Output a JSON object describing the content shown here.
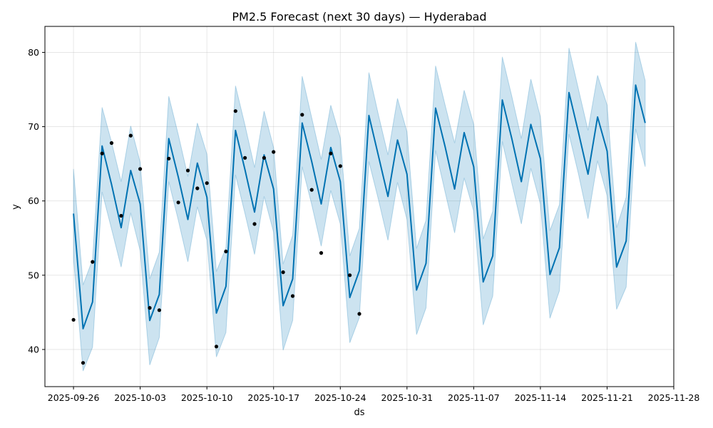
{
  "chart_data": {
    "type": "line",
    "title": "PM2.5 Forecast (next 30 days) — Hyderabad",
    "xlabel": "ds",
    "ylabel": "y",
    "grid": true,
    "x_range": [
      "2025-09-23",
      "2025-11-28"
    ],
    "ylim": [
      35,
      83.5
    ],
    "x_ticks": [
      "2025-09-26",
      "2025-10-03",
      "2025-10-10",
      "2025-10-17",
      "2025-10-24",
      "2025-10-31",
      "2025-11-07",
      "2025-11-14",
      "2025-11-21",
      "2025-11-28"
    ],
    "y_ticks": [
      40,
      50,
      60,
      70,
      80
    ],
    "colors": {
      "forecast": "#0072b2",
      "interval": "#0072b2",
      "observed": "#000000"
    },
    "series": [
      {
        "type": "scatter",
        "points": [
          {
            "x": "2025-09-26",
            "y": 44.0
          },
          {
            "x": "2025-09-27",
            "y": 38.2
          },
          {
            "x": "2025-09-28",
            "y": 51.8
          },
          {
            "x": "2025-09-29",
            "y": 66.4
          },
          {
            "x": "2025-09-30",
            "y": 67.8
          },
          {
            "x": "2025-10-01",
            "y": 58.0
          },
          {
            "x": "2025-10-02",
            "y": 68.8
          },
          {
            "x": "2025-10-03",
            "y": 64.3
          },
          {
            "x": "2025-10-04",
            "y": 45.6
          },
          {
            "x": "2025-10-05",
            "y": 45.3
          },
          {
            "x": "2025-10-06",
            "y": 65.7
          },
          {
            "x": "2025-10-07",
            "y": 59.8
          },
          {
            "x": "2025-10-08",
            "y": 64.1
          },
          {
            "x": "2025-10-09",
            "y": 61.7
          },
          {
            "x": "2025-10-10",
            "y": 62.4
          },
          {
            "x": "2025-10-11",
            "y": 40.4
          },
          {
            "x": "2025-10-12",
            "y": 53.2
          },
          {
            "x": "2025-10-13",
            "y": 72.1
          },
          {
            "x": "2025-10-14",
            "y": 65.8
          },
          {
            "x": "2025-10-15",
            "y": 56.9
          },
          {
            "x": "2025-10-16",
            "y": 65.8
          },
          {
            "x": "2025-10-17",
            "y": 66.6
          },
          {
            "x": "2025-10-18",
            "y": 50.4
          },
          {
            "x": "2025-10-19",
            "y": 47.2
          },
          {
            "x": "2025-10-20",
            "y": 71.6
          },
          {
            "x": "2025-10-21",
            "y": 61.5
          },
          {
            "x": "2025-10-22",
            "y": 53.0
          },
          {
            "x": "2025-10-23",
            "y": 66.4
          },
          {
            "x": "2025-10-24",
            "y": 64.7
          },
          {
            "x": "2025-10-25",
            "y": 50.0
          },
          {
            "x": "2025-10-26",
            "y": 44.8
          }
        ]
      },
      {
        "type": "line",
        "points": [
          {
            "x": "2025-09-26",
            "y": 58.3
          },
          {
            "x": "2025-09-27",
            "y": 42.8
          },
          {
            "x": "2025-09-28",
            "y": 46.4
          },
          {
            "x": "2025-09-29",
            "y": 67.4
          },
          {
            "x": "2025-09-30",
            "y": 62.2
          },
          {
            "x": "2025-10-01",
            "y": 56.4
          },
          {
            "x": "2025-10-02",
            "y": 64.1
          },
          {
            "x": "2025-10-03",
            "y": 59.6
          },
          {
            "x": "2025-10-04",
            "y": 43.9
          },
          {
            "x": "2025-10-05",
            "y": 47.4
          },
          {
            "x": "2025-10-06",
            "y": 68.4
          },
          {
            "x": "2025-10-07",
            "y": 63.2
          },
          {
            "x": "2025-10-08",
            "y": 57.5
          },
          {
            "x": "2025-10-09",
            "y": 65.1
          },
          {
            "x": "2025-10-10",
            "y": 60.5
          },
          {
            "x": "2025-10-11",
            "y": 44.9
          },
          {
            "x": "2025-10-12",
            "y": 48.5
          },
          {
            "x": "2025-10-13",
            "y": 69.5
          },
          {
            "x": "2025-10-14",
            "y": 64.2
          },
          {
            "x": "2025-10-15",
            "y": 58.5
          },
          {
            "x": "2025-10-16",
            "y": 66.2
          },
          {
            "x": "2025-10-17",
            "y": 61.6
          },
          {
            "x": "2025-10-18",
            "y": 45.9
          },
          {
            "x": "2025-10-19",
            "y": 49.5
          },
          {
            "x": "2025-10-20",
            "y": 70.5
          },
          {
            "x": "2025-10-21",
            "y": 65.3
          },
          {
            "x": "2025-10-22",
            "y": 59.6
          },
          {
            "x": "2025-10-23",
            "y": 67.2
          },
          {
            "x": "2025-10-24",
            "y": 62.6
          },
          {
            "x": "2025-10-25",
            "y": 47.0
          },
          {
            "x": "2025-10-26",
            "y": 50.6
          },
          {
            "x": "2025-10-27",
            "y": 71.5
          },
          {
            "x": "2025-10-28",
            "y": 66.1
          },
          {
            "x": "2025-10-29",
            "y": 60.6
          },
          {
            "x": "2025-10-30",
            "y": 68.2
          },
          {
            "x": "2025-10-31",
            "y": 63.6
          },
          {
            "x": "2025-11-01",
            "y": 48.0
          },
          {
            "x": "2025-11-02",
            "y": 51.6
          },
          {
            "x": "2025-11-03",
            "y": 72.5
          },
          {
            "x": "2025-11-04",
            "y": 67.3
          },
          {
            "x": "2025-11-05",
            "y": 61.6
          },
          {
            "x": "2025-11-06",
            "y": 69.2
          },
          {
            "x": "2025-11-07",
            "y": 64.6
          },
          {
            "x": "2025-11-08",
            "y": 49.1
          },
          {
            "x": "2025-11-09",
            "y": 52.6
          },
          {
            "x": "2025-11-10",
            "y": 73.6
          },
          {
            "x": "2025-11-11",
            "y": 68.4
          },
          {
            "x": "2025-11-12",
            "y": 62.6
          },
          {
            "x": "2025-11-13",
            "y": 70.3
          },
          {
            "x": "2025-11-14",
            "y": 65.7
          },
          {
            "x": "2025-11-15",
            "y": 50.1
          },
          {
            "x": "2025-11-16",
            "y": 53.7
          },
          {
            "x": "2025-11-17",
            "y": 74.6
          },
          {
            "x": "2025-11-18",
            "y": 69.2
          },
          {
            "x": "2025-11-19",
            "y": 63.6
          },
          {
            "x": "2025-11-20",
            "y": 71.3
          },
          {
            "x": "2025-11-21",
            "y": 66.7
          },
          {
            "x": "2025-11-22",
            "y": 51.1
          },
          {
            "x": "2025-11-23",
            "y": 54.6
          },
          {
            "x": "2025-11-24",
            "y": 75.6
          },
          {
            "x": "2025-11-25",
            "y": 70.5
          }
        ]
      },
      {
        "type": "band",
        "lower": [
          52.2,
          37.1,
          40.3,
          61.2,
          56.2,
          51.1,
          58.4,
          53.3,
          37.9,
          41.6,
          62.6,
          57.4,
          51.8,
          59.2,
          54.7,
          39.0,
          42.3,
          63.5,
          58.3,
          52.8,
          60.6,
          55.8,
          39.9,
          43.9,
          64.6,
          59.5,
          53.9,
          61.4,
          56.9,
          40.9,
          44.3,
          65.3,
          60.2,
          54.7,
          62.5,
          57.5,
          42.0,
          45.6,
          66.8,
          61.2,
          55.7,
          63.1,
          58.6,
          43.3,
          47.2,
          68.0,
          62.4,
          56.9,
          64.4,
          59.6,
          44.2,
          47.9,
          69.0,
          63.6,
          57.6,
          65.4,
          60.7,
          45.4,
          48.4,
          69.7,
          64.6
        ],
        "upper": [
          64.3,
          48.7,
          52.1,
          72.6,
          67.9,
          62.6,
          70.1,
          65.2,
          49.5,
          53.1,
          74.1,
          68.9,
          63.3,
          70.5,
          66.3,
          50.5,
          53.7,
          75.5,
          70.2,
          64.5,
          72.1,
          67.2,
          51.5,
          55.4,
          76.8,
          71.2,
          65.6,
          72.9,
          68.5,
          52.6,
          56.3,
          77.3,
          71.6,
          66.2,
          73.8,
          69.3,
          53.6,
          57.4,
          78.2,
          72.9,
          67.8,
          74.9,
          70.3,
          54.9,
          58.6,
          79.4,
          74.1,
          68.4,
          76.4,
          71.3,
          56.0,
          59.5,
          80.6,
          75.0,
          69.5,
          76.9,
          72.9,
          56.4,
          60.5,
          81.4,
          76.2
        ]
      }
    ]
  }
}
